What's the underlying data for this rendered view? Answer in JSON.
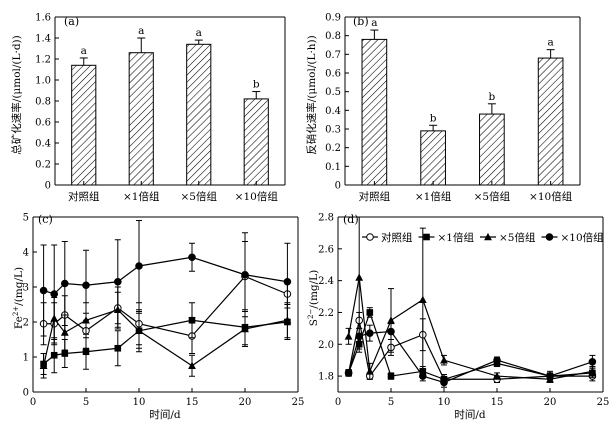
{
  "chart_data": [
    {
      "panel": "(a)",
      "type": "bar",
      "ylabel": "总矿化速率/(μmol/(L·d))",
      "categories": [
        "对照组",
        "×1倍组",
        "×5倍组",
        "×10倍组"
      ],
      "values": [
        1.14,
        1.26,
        1.34,
        0.82
      ],
      "errors": [
        0.07,
        0.14,
        0.04,
        0.07
      ],
      "significance": [
        "a",
        "a",
        "a",
        "b"
      ],
      "ylim": [
        0,
        1.6
      ],
      "yticks": [
        "0",
        "0.2",
        "0.4",
        "0.6",
        "0.8",
        "1.0",
        "1.2",
        "1.4",
        "1.6"
      ],
      "yticks_values": [
        0,
        0.2,
        0.4,
        0.6,
        0.8,
        1.0,
        1.2,
        1.4,
        1.6
      ],
      "fill": "hatched"
    },
    {
      "panel": "(b)",
      "type": "bar",
      "ylabel": "反硝化速率/(μmol/(L·h))",
      "categories": [
        "对照组",
        "×1倍组",
        "×5倍组",
        "×10倍组"
      ],
      "values": [
        0.78,
        0.29,
        0.38,
        0.68
      ],
      "errors": [
        0.05,
        0.03,
        0.055,
        0.045
      ],
      "significance": [
        "a",
        "b",
        "b",
        "a"
      ],
      "ylim": [
        0,
        0.9
      ],
      "yticks": [
        "0",
        "0.1",
        "0.2",
        "0.3",
        "0.4",
        "0.5",
        "0.6",
        "0.7",
        "0.8",
        "0.9"
      ],
      "yticks_values": [
        0,
        0.1,
        0.2,
        0.3,
        0.4,
        0.5,
        0.6,
        0.7,
        0.8,
        0.9
      ],
      "fill": "hatched"
    },
    {
      "panel": "(c)",
      "type": "line",
      "xlabel": "时间/d",
      "ylabel_main": "Fe",
      "ylabel_sup": "2+",
      "ylabel_rest": "/(mg/L)",
      "x": [
        1,
        2,
        3,
        5,
        8,
        10,
        15,
        20,
        24
      ],
      "xlim": [
        0,
        25
      ],
      "xticks": [
        "0",
        "5",
        "10",
        "15",
        "20",
        "25"
      ],
      "xticks_values": [
        0,
        5,
        10,
        15,
        20,
        25
      ],
      "ylim": [
        0,
        5
      ],
      "yticks": [
        "0",
        "1",
        "2",
        "3",
        "4",
        "5"
      ],
      "yticks_values": [
        0,
        1,
        2,
        3,
        4,
        5
      ],
      "series": [
        {
          "values": [
            1.95,
            1.95,
            2.2,
            1.75,
            2.4,
            1.95,
            1.6,
            3.3,
            2.8
          ],
          "errors": [
            0.6,
            0.6,
            0.55,
            0.5,
            0.6,
            0.6,
            0.5,
            1.0,
            0.4
          ],
          "marker": "circle-open"
        },
        {
          "values": [
            0.8,
            1.05,
            1.1,
            1.15,
            1.25,
            1.75,
            2.05,
            1.85,
            2.0
          ],
          "errors": [
            0.3,
            0.5,
            0.4,
            0.5,
            0.5,
            0.5,
            0.5,
            0.5,
            0.5
          ],
          "marker": "square"
        },
        {
          "values": [
            0.75,
            2.1,
            1.7,
            2.05,
            2.35,
            1.75,
            0.75,
            1.8,
            2.05
          ],
          "errors": [
            0.35,
            0.6,
            0.5,
            0.5,
            0.5,
            0.6,
            0.3,
            0.5,
            0.5
          ],
          "marker": "triangle"
        },
        {
          "values": [
            2.9,
            2.8,
            3.1,
            3.05,
            3.15,
            3.6,
            3.85,
            3.35,
            3.15
          ],
          "errors": [
            1.3,
            1.4,
            1.2,
            1.0,
            1.2,
            1.3,
            0.4,
            1.2,
            1.1
          ],
          "marker": "circle"
        }
      ]
    },
    {
      "panel": "(d)",
      "type": "line",
      "xlabel": "时间/d",
      "ylabel_main": "S",
      "ylabel_sup": "2−",
      "ylabel_rest": "/(mg/L)",
      "x": [
        1,
        2,
        3,
        5,
        8,
        10,
        15,
        20,
        24
      ],
      "xlim": [
        0,
        25
      ],
      "xticks": [
        "0",
        "5",
        "10",
        "15",
        "20",
        "25"
      ],
      "xticks_values": [
        0,
        5,
        10,
        15,
        20,
        25
      ],
      "ylim": [
        1.7,
        2.8
      ],
      "yticks": [
        "1.8",
        "2.0",
        "2.2",
        "2.4",
        "2.6",
        "2.8"
      ],
      "yticks_values": [
        1.8,
        2.0,
        2.2,
        2.4,
        2.6,
        2.8
      ],
      "legend_position": "top-right",
      "series": [
        {
          "name": "对照组",
          "values": [
            1.82,
            2.15,
            1.8,
            1.98,
            2.06,
            1.78,
            1.78,
            1.8,
            1.8
          ],
          "errors": [
            0.02,
            0.05,
            0.02,
            0.05,
            0.1,
            0.03,
            0.02,
            0.02,
            0.03
          ],
          "marker": "circle-open"
        },
        {
          "name": "×1倍组",
          "values": [
            1.82,
            2.0,
            2.2,
            1.8,
            1.83,
            1.78,
            1.88,
            1.8,
            1.82
          ],
          "errors": [
            0.02,
            0.05,
            0.03,
            0.02,
            0.03,
            0.03,
            0.02,
            0.02,
            0.03
          ],
          "marker": "square"
        },
        {
          "name": "×5倍组",
          "values": [
            2.05,
            2.42,
            1.83,
            2.15,
            2.28,
            1.9,
            1.8,
            1.78,
            1.83
          ],
          "errors": [
            0.05,
            0.45,
            0.05,
            0.2,
            0.45,
            0.03,
            0.02,
            0.02,
            0.03
          ],
          "marker": "triangle"
        },
        {
          "name": "×10倍组",
          "values": [
            1.82,
            2.05,
            2.07,
            2.08,
            1.8,
            1.76,
            1.9,
            1.8,
            1.89
          ],
          "errors": [
            0.02,
            0.05,
            0.05,
            0.05,
            0.03,
            0.03,
            0.02,
            0.03,
            0.04
          ],
          "marker": "circle"
        }
      ]
    }
  ]
}
